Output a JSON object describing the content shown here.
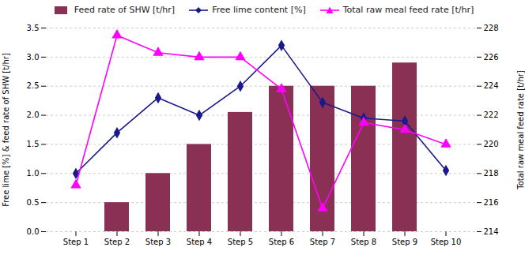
{
  "chart_data": {
    "type": "bar",
    "categories": [
      "Step 1",
      "Step 2",
      "Step 3",
      "Step 4",
      "Step 5",
      "Step 6",
      "Step 7",
      "Step 8",
      "Step 9",
      "Step 10"
    ],
    "series": [
      {
        "name": "Feed rate of SHW [t/hr]",
        "type": "bar",
        "color": "#8B3055",
        "values": [
          0.0,
          0.5,
          1.0,
          1.5,
          2.05,
          2.5,
          2.5,
          2.5,
          2.9,
          0.0
        ]
      },
      {
        "name": "Free lime content [%]",
        "type": "line",
        "color": "#1a1a8c",
        "marker": "diamond",
        "values": [
          1.0,
          1.7,
          2.3,
          2.0,
          2.5,
          3.2,
          2.22,
          1.95,
          1.9,
          1.05
        ]
      },
      {
        "name": "Total raw meal feed rate [t/hr]",
        "type": "line",
        "color": "#FF00FF",
        "marker": "triangle",
        "axis": "y2",
        "values": [
          217.2,
          227.5,
          226.3,
          226.0,
          226.0,
          223.8,
          215.6,
          221.5,
          221.0,
          220.0
        ]
      }
    ],
    "ylabel": "Free lime [%] & feed rate of SHW [t/hr]",
    "y2label": "Total raw meal feed rate [t/hr]",
    "ylim": [
      0.0,
      3.5
    ],
    "yticks": [
      {
        "value": 0.0,
        "label": "0.0"
      },
      0.5,
      {
        "value": 1.0,
        "label": "1.0"
      },
      1.5,
      {
        "value": 2.0,
        "label": "2.0"
      },
      2.5,
      {
        "value": 3.0,
        "label": "3.0"
      },
      3.5
    ],
    "y2lim": [
      214,
      228
    ],
    "y2ticks": [
      214,
      216,
      218,
      220,
      222,
      224,
      226,
      228
    ],
    "grid": true,
    "legend": "top"
  }
}
